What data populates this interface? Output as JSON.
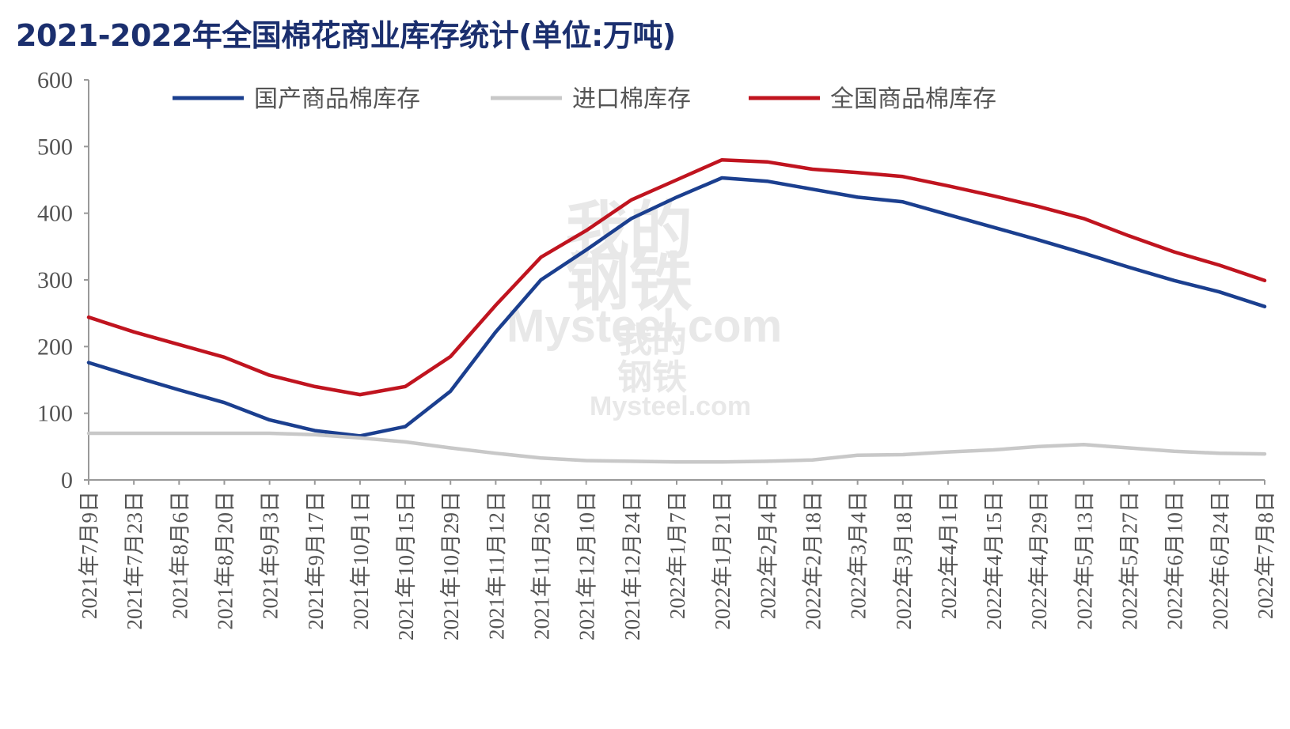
{
  "chart_data": {
    "type": "line",
    "title": "2021-2022年全国棉花商业库存统计(单位:万吨)",
    "ylim": [
      0,
      600
    ],
    "yticks": [
      "600",
      "500",
      "400",
      "300",
      "200",
      "100",
      "0"
    ],
    "categories": [
      "2021年7月9日",
      "2021年7月23日",
      "2021年8月6日",
      "2021年8月20日",
      "2021年9月3日",
      "2021年9月17日",
      "2021年10月1日",
      "2021年10月15日",
      "2021年10月29日",
      "2021年11月12日",
      "2021年11月26日",
      "2021年12月10日",
      "2021年12月24日",
      "2022年1月7日",
      "2022年1月21日",
      "2022年2月4日",
      "2022年2月18日",
      "2022年3月4日",
      "2022年3月18日",
      "2022年4月1日",
      "2022年4月15日",
      "2022年4月29日",
      "2022年5月13日",
      "2022年5月27日",
      "2022年6月10日",
      "2022年6月24日",
      "2022年7月8日"
    ],
    "grid": false,
    "legend_position": "top",
    "series": [
      {
        "name": "国产商品棉库存",
        "color": "#1b3f8f",
        "values": [
          176,
          155,
          135,
          116,
          90,
          74,
          66,
          80,
          133,
          222,
          300,
          345,
          392,
          424,
          453,
          448,
          436,
          424,
          417,
          398,
          379,
          360,
          340,
          319,
          299,
          282,
          260
        ]
      },
      {
        "name": "进口棉库存",
        "color": "#c8c8c8",
        "values": [
          70,
          70,
          70,
          70,
          70,
          68,
          63,
          57,
          48,
          40,
          33,
          29,
          28,
          27,
          27,
          28,
          30,
          37,
          38,
          42,
          45,
          50,
          53,
          48,
          43,
          40,
          39
        ]
      },
      {
        "name": "全国商品棉库存",
        "color": "#c0141f",
        "values": [
          244,
          222,
          203,
          184,
          157,
          140,
          128,
          140,
          185,
          262,
          334,
          374,
          420,
          450,
          480,
          477,
          466,
          461,
          455,
          441,
          426,
          410,
          392,
          366,
          342,
          322,
          299
        ]
      }
    ]
  },
  "watermark": {
    "line1": "我的",
    "line2": "钢铁",
    "brand": "Mysteel.com"
  }
}
